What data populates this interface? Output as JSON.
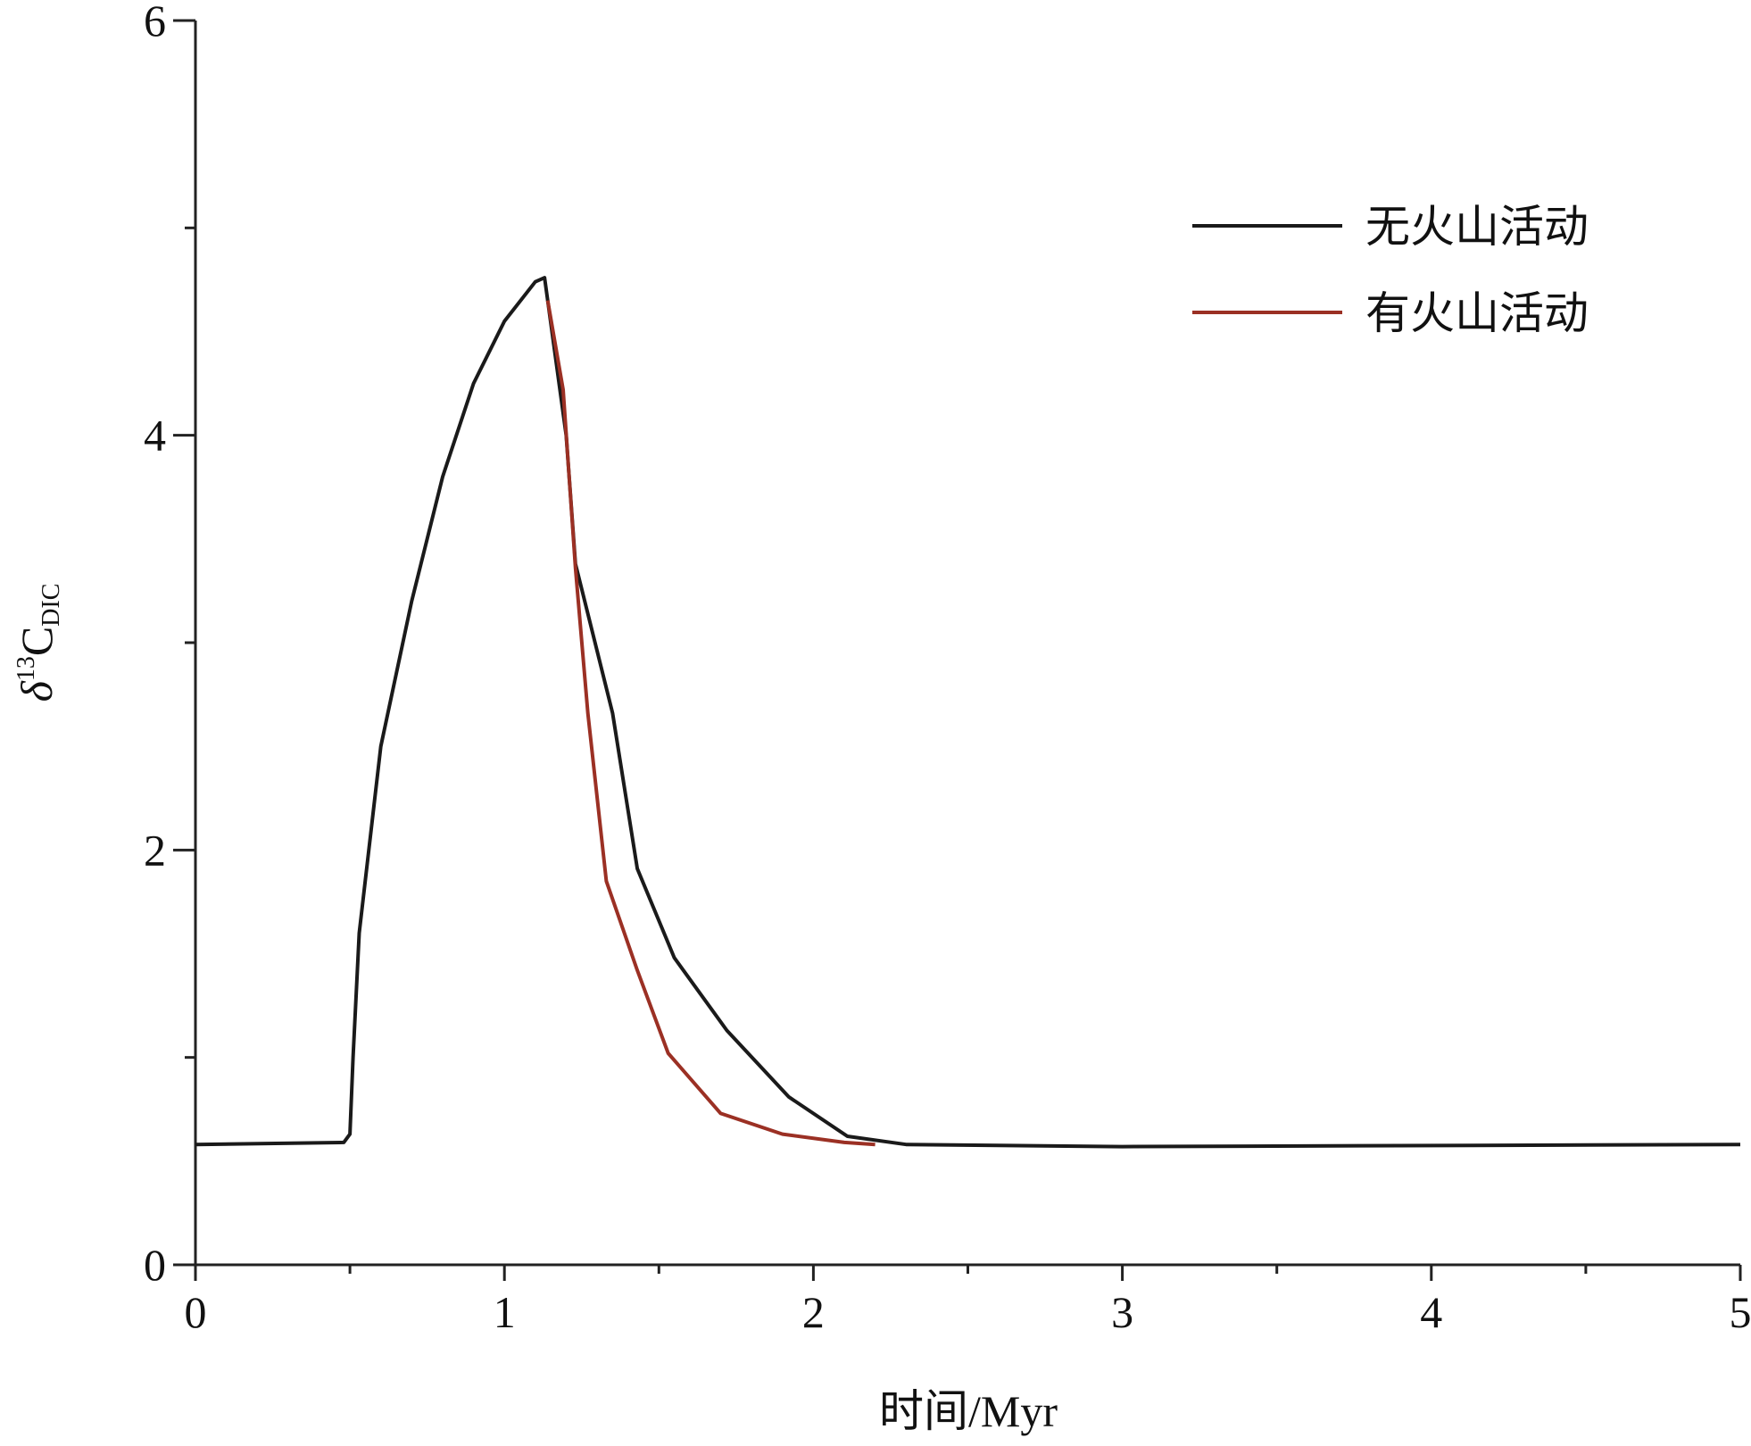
{
  "chart_data": {
    "type": "line",
    "xlabel": "时间/Myr",
    "ylabel": {
      "base": "δ",
      "sup": "13",
      "main": "C",
      "sub": "DIC"
    },
    "xlim": [
      0,
      5
    ],
    "ylim": [
      0,
      6
    ],
    "xticks": [
      0,
      1,
      2,
      3,
      4,
      5
    ],
    "yticks": [
      0,
      2,
      4,
      6
    ],
    "xminorticks": [
      0.5,
      1.5,
      2.5,
      3.5,
      4.5
    ],
    "yminorticks": [
      1,
      3,
      5
    ],
    "legend": "upper right",
    "series": [
      {
        "name": "无火山活动",
        "color": "#1a1a1a",
        "x": [
          0,
          0.48,
          0.5,
          0.51,
          0.53,
          0.6,
          0.7,
          0.8,
          0.9,
          1.0,
          1.1,
          1.13,
          1.2,
          1.23,
          1.35,
          1.43,
          1.55,
          1.72,
          1.92,
          2.11,
          2.3,
          3,
          5
        ],
        "values": [
          0.58,
          0.59,
          0.63,
          1.0,
          1.6,
          2.5,
          3.2,
          3.8,
          4.25,
          4.55,
          4.74,
          4.76,
          4.0,
          3.38,
          2.66,
          1.91,
          1.48,
          1.13,
          0.81,
          0.62,
          0.58,
          0.57,
          0.58
        ]
      },
      {
        "name": "有火山活动",
        "color": "#9b3024",
        "x": [
          1.14,
          1.19,
          1.23,
          1.27,
          1.33,
          1.43,
          1.53,
          1.7,
          1.9,
          2.1,
          2.2
        ],
        "values": [
          4.65,
          4.22,
          3.36,
          2.66,
          1.85,
          1.42,
          1.02,
          0.73,
          0.63,
          0.59,
          0.58
        ]
      }
    ]
  }
}
